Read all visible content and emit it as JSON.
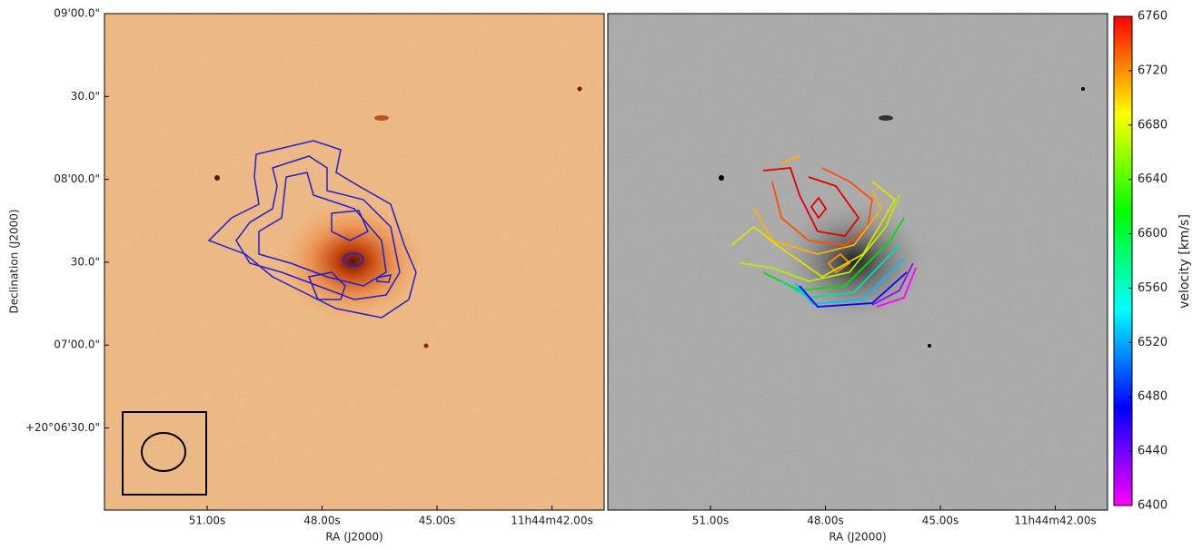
{
  "left_panel": {
    "xlabel": "RA (J2000)",
    "ylabel": "Declination (J2000)",
    "xticks": [
      "51.00s",
      "48.00s",
      "45.00s",
      "11h44m42.00s"
    ],
    "yticks": [
      "09'00.0\"",
      "30.0\"",
      "08'00.0\"",
      "30.0\"",
      "07'00.0\"",
      "+20°06'30.0\""
    ]
  },
  "right_panel": {
    "xlabel": "RA (J2000)",
    "xticks": [
      "51.00s",
      "48.00s",
      "45.00s",
      "11h44m42.00s"
    ]
  },
  "colorbar": {
    "label": "velocity [km/s]",
    "lim": [
      6400,
      6760
    ],
    "ticks": [
      6400,
      6440,
      6480,
      6520,
      6560,
      6600,
      6640,
      6680,
      6720,
      6760
    ]
  }
}
